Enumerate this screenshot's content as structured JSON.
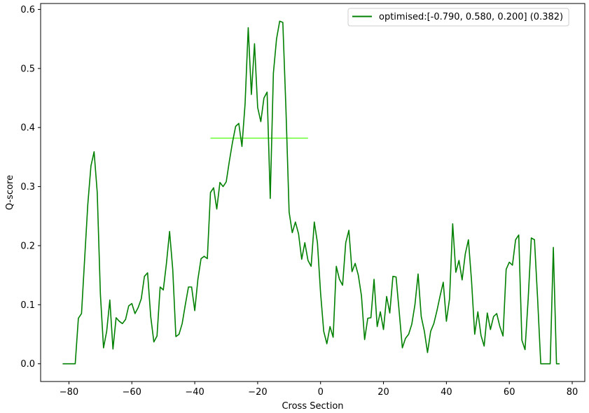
{
  "chart_data": {
    "type": "line",
    "title": "",
    "xlabel": "Cross Section",
    "ylabel": "Q-score",
    "xlim": [
      -89,
      84
    ],
    "ylim": [
      -0.03,
      0.61
    ],
    "xticks": [
      -80,
      -60,
      -40,
      -20,
      0,
      20,
      40,
      60,
      80
    ],
    "yticks": [
      0.0,
      0.1,
      0.2,
      0.3,
      0.4,
      0.5,
      0.6
    ],
    "xtick_labels": [
      "−80",
      "−60",
      "−40",
      "−20",
      "0",
      "20",
      "40",
      "60",
      "80"
    ],
    "ytick_labels": [
      "0.0",
      "0.1",
      "0.2",
      "0.3",
      "0.4",
      "0.5",
      "0.6"
    ],
    "grid": false,
    "legend_position": "top-right",
    "series": [
      {
        "name": "optimised:[-0.790, 0.580, 0.200] (0.382)",
        "color": "#008000",
        "x": [
          -82,
          -81,
          -80,
          -79,
          -78,
          -77,
          -76,
          -75,
          -74,
          -73,
          -72,
          -71,
          -70,
          -69,
          -68,
          -67,
          -66,
          -65,
          -64,
          -63,
          -62,
          -61,
          -60,
          -59,
          -58,
          -57,
          -56,
          -55,
          -54,
          -53,
          -52,
          -51,
          -50,
          -49,
          -48,
          -47,
          -46,
          -45,
          -44,
          -43,
          -42,
          -41,
          -40,
          -39,
          -38,
          -37,
          -36,
          -35,
          -34,
          -33,
          -32,
          -31,
          -30,
          -29,
          -28,
          -27,
          -26,
          -25,
          -24,
          -23,
          -22,
          -21,
          -20,
          -19,
          -18,
          -17,
          -16,
          -15,
          -14,
          -13,
          -12,
          -11,
          -10,
          -9,
          -8,
          -7,
          -6,
          -5,
          -4,
          -3,
          -2,
          -1,
          0,
          1,
          2,
          3,
          4,
          5,
          6,
          7,
          8,
          9,
          10,
          11,
          12,
          13,
          14,
          15,
          16,
          17,
          18,
          19,
          20,
          21,
          22,
          23,
          24,
          25,
          26,
          27,
          28,
          29,
          30,
          31,
          32,
          33,
          34,
          35,
          36,
          37,
          38,
          39,
          40,
          41,
          42,
          43,
          44,
          45,
          46,
          47,
          48,
          49,
          50,
          51,
          52,
          53,
          54,
          55,
          56,
          57,
          58,
          59,
          60,
          61,
          62,
          63,
          64,
          65,
          66,
          67,
          68,
          69,
          70,
          71,
          72,
          73,
          74,
          75,
          76
        ],
        "y": [
          0.0,
          0.0,
          0.0,
          0.0,
          0.0,
          0.077,
          0.085,
          0.178,
          0.27,
          0.335,
          0.359,
          0.29,
          0.118,
          0.027,
          0.055,
          0.108,
          0.025,
          0.078,
          0.072,
          0.068,
          0.075,
          0.098,
          0.102,
          0.085,
          0.095,
          0.11,
          0.148,
          0.154,
          0.08,
          0.037,
          0.047,
          0.13,
          0.125,
          0.17,
          0.224,
          0.16,
          0.046,
          0.05,
          0.068,
          0.1,
          0.13,
          0.13,
          0.09,
          0.143,
          0.178,
          0.182,
          0.178,
          0.29,
          0.298,
          0.262,
          0.307,
          0.3,
          0.308,
          0.343,
          0.375,
          0.402,
          0.407,
          0.368,
          0.44,
          0.569,
          0.456,
          0.542,
          0.434,
          0.41,
          0.45,
          0.46,
          0.28,
          0.492,
          0.55,
          0.58,
          0.578,
          0.43,
          0.257,
          0.222,
          0.24,
          0.22,
          0.177,
          0.205,
          0.175,
          0.165,
          0.24,
          0.205,
          0.12,
          0.055,
          0.034,
          0.063,
          0.045,
          0.165,
          0.143,
          0.133,
          0.205,
          0.226,
          0.156,
          0.17,
          0.15,
          0.115,
          0.041,
          0.077,
          0.078,
          0.143,
          0.063,
          0.088,
          0.058,
          0.114,
          0.086,
          0.148,
          0.147,
          0.088,
          0.027,
          0.043,
          0.05,
          0.067,
          0.1,
          0.152,
          0.08,
          0.055,
          0.019,
          0.055,
          0.068,
          0.09,
          0.115,
          0.138,
          0.072,
          0.11,
          0.237,
          0.155,
          0.175,
          0.142,
          0.186,
          0.21,
          0.14,
          0.05,
          0.088,
          0.048,
          0.03,
          0.086,
          0.058,
          0.08,
          0.085,
          0.063,
          0.047,
          0.16,
          0.172,
          0.167,
          0.21,
          0.218,
          0.04,
          0.024,
          0.11,
          0.213,
          0.21,
          0.11,
          0.0,
          0.0,
          0.0,
          0.0,
          0.197,
          0.0,
          0.0
        ]
      }
    ],
    "reference_line": {
      "color": "#66ff33",
      "x_start": -35,
      "x_end": -4,
      "y": 0.382
    }
  }
}
